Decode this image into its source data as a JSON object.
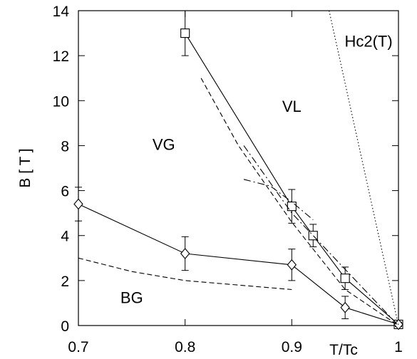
{
  "chart_data": {
    "type": "scatter",
    "xlabel": "T/Tc",
    "ylabel": "B [ T ]",
    "xlim": [
      0.7,
      1.0
    ],
    "ylim": [
      0,
      14
    ],
    "grid": false,
    "xticks": [
      "0.7",
      "0.8",
      "0.9",
      "1"
    ],
    "yticks": [
      "0",
      "2",
      "4",
      "6",
      "8",
      "10",
      "12",
      "14"
    ],
    "xtick_values": [
      0.7,
      0.8,
      0.9,
      1.0
    ],
    "ytick_values": [
      0,
      2,
      4,
      6,
      8,
      10,
      12,
      14
    ],
    "series": [
      {
        "marker": "square",
        "line": "solid",
        "x": [
          0.8,
          0.9,
          0.92,
          0.95,
          1.0
        ],
        "y": [
          13.0,
          5.3,
          4.0,
          2.1,
          0.05
        ],
        "err": [
          1.0,
          0.75,
          0.5,
          0.5,
          0.1
        ]
      },
      {
        "marker": "diamond",
        "line": "solid",
        "x": [
          0.7,
          0.8,
          0.9,
          0.95,
          1.0
        ],
        "y": [
          5.4,
          3.2,
          2.7,
          0.8,
          0.05
        ],
        "err": [
          0.75,
          0.75,
          0.7,
          0.5,
          0.1
        ]
      },
      {
        "line": "dashed",
        "x": [
          0.815,
          0.85,
          0.9,
          0.95,
          1.0
        ],
        "y": [
          11.0,
          8.0,
          4.6,
          1.6,
          0.0
        ]
      },
      {
        "line": "dashed",
        "x": [
          0.7,
          0.75,
          0.8,
          0.85,
          0.9
        ],
        "y": [
          3.0,
          2.4,
          2.0,
          1.8,
          1.6
        ]
      },
      {
        "line": "dashdot",
        "x": [
          0.855,
          0.9,
          0.95,
          1.0
        ],
        "y": [
          8.0,
          5.0,
          2.5,
          0.0
        ]
      },
      {
        "line": "dashdot",
        "x": [
          0.855,
          0.88,
          0.9,
          0.92
        ],
        "y": [
          6.5,
          6.2,
          5.5,
          4.7
        ]
      },
      {
        "line": "dotted",
        "x": [
          0.935,
          1.0
        ],
        "y": [
          14.0,
          0.0
        ]
      }
    ],
    "annotations": [
      {
        "text": "Hc2(T)",
        "x": 0.972,
        "y": 12.4
      },
      {
        "text": "VL",
        "x": 0.9,
        "y": 9.5
      },
      {
        "text": "VG",
        "x": 0.78,
        "y": 7.8
      },
      {
        "text": "BG",
        "x": 0.75,
        "y": 1.0
      }
    ]
  }
}
